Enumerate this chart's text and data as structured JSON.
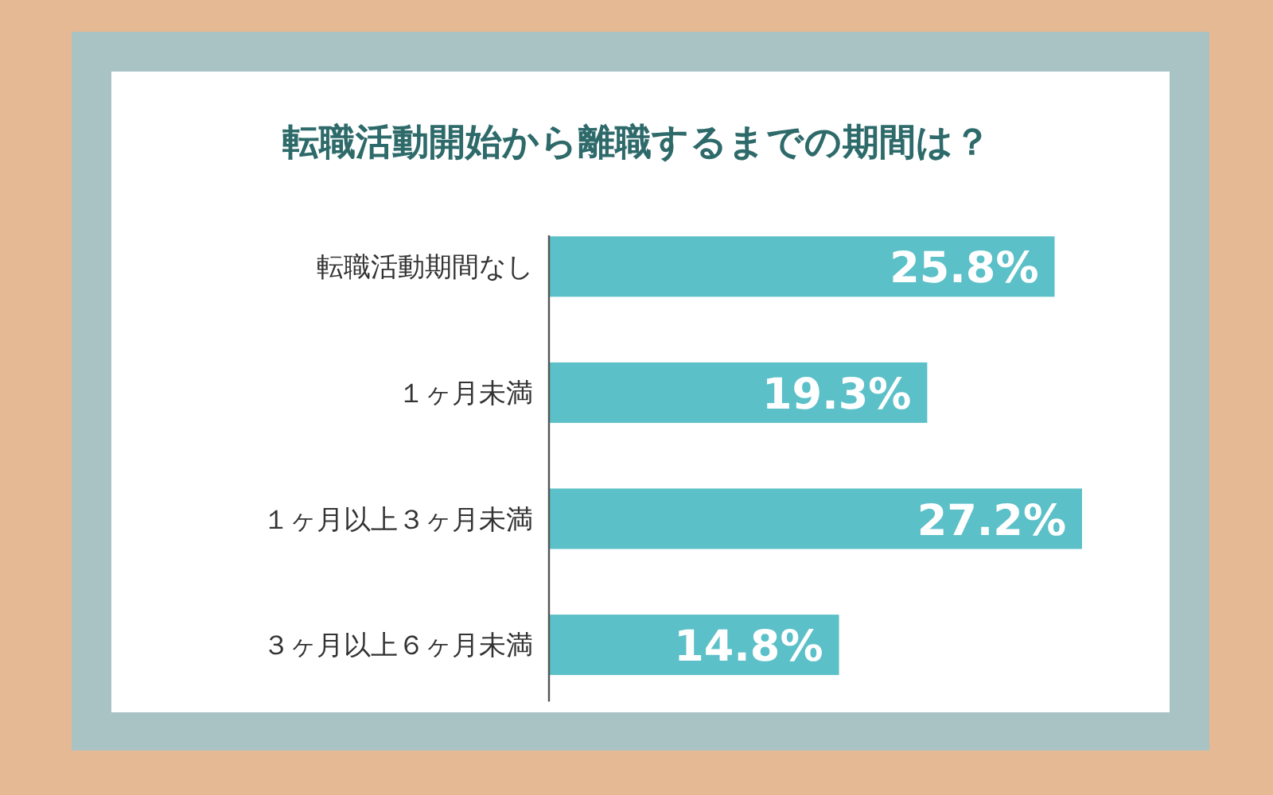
{
  "chart_data": {
    "type": "bar",
    "orientation": "horizontal",
    "title": "転職活動開始から離職するまでの期間は？",
    "categories": [
      "転職活動期間なし",
      "１ヶ月未満",
      "１ヶ月以上３ヶ月未満",
      "３ヶ月以上６ヶ月未満"
    ],
    "values": [
      25.8,
      19.3,
      27.2,
      14.8
    ],
    "value_labels": [
      "25.8%",
      "19.3%",
      "27.2%",
      "14.8%"
    ],
    "color": "#5bc0c8"
  }
}
